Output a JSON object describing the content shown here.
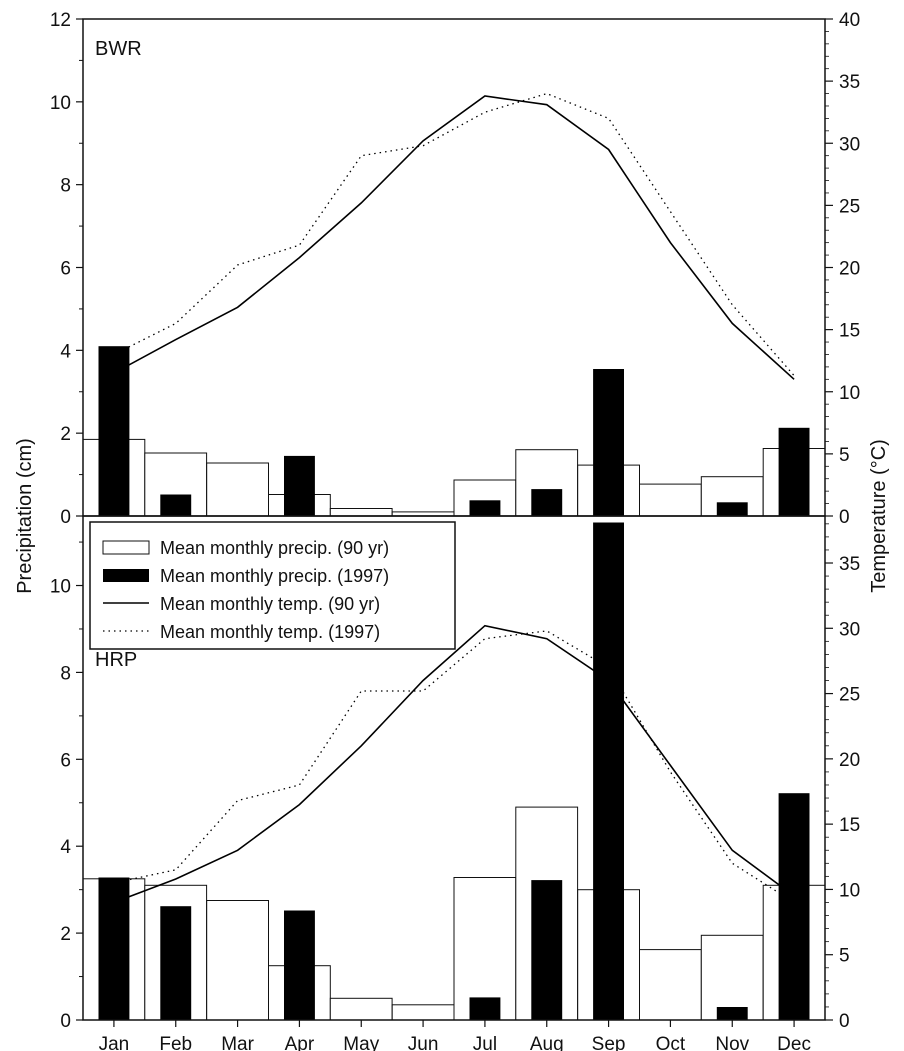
{
  "chart_data": {
    "type": "bar",
    "categories": [
      "Jan",
      "Feb",
      "Mar",
      "Apr",
      "May",
      "Jun",
      "Jul",
      "Aug",
      "Sep",
      "Oct",
      "Nov",
      "Dec"
    ],
    "ylabel": "Precipitation (cm)",
    "y2label": "Temperature (°C)",
    "legend": {
      "placement": "middle-left",
      "entries": [
        "Mean monthly precip. (90 yr)",
        "Mean monthly precip. (1997)",
        "Mean monthly temp. (90 yr)",
        "Mean monthly temp. (1997)"
      ]
    },
    "panels": [
      {
        "label": "BWR",
        "ylim": [
          0,
          12
        ],
        "y_ticks": [
          0,
          2,
          4,
          6,
          8,
          10,
          12
        ],
        "y2lim": [
          0,
          40
        ],
        "y2_ticks": [
          0,
          5,
          10,
          15,
          20,
          25,
          30,
          35,
          40
        ],
        "precip_90yr": [
          1.85,
          1.52,
          1.28,
          0.52,
          0.18,
          0.1,
          0.87,
          1.6,
          1.23,
          0.77,
          0.95,
          1.63
        ],
        "precip_1997": [
          4.1,
          0.52,
          0,
          1.45,
          0,
          0,
          0.38,
          0.65,
          3.55,
          0,
          0.33,
          2.13
        ],
        "temp_90yr": [
          11.5,
          14.2,
          16.8,
          20.8,
          25.2,
          30.2,
          33.8,
          33.1,
          29.5,
          22.0,
          15.5,
          11.0
        ],
        "temp_1997": [
          13.0,
          15.5,
          20.2,
          21.8,
          29.0,
          29.8,
          32.5,
          34.0,
          32.0,
          24.5,
          17.0,
          11.3
        ]
      },
      {
        "label": "HRP",
        "ylim": [
          0,
          11.6
        ],
        "y_ticks": [
          0,
          2,
          4,
          6,
          8,
          10
        ],
        "y2lim": [
          0,
          38.6
        ],
        "y2_ticks": [
          0,
          5,
          10,
          15,
          20,
          25,
          30,
          35
        ],
        "precip_90yr": [
          3.25,
          3.1,
          2.75,
          1.25,
          0.5,
          0.35,
          3.28,
          4.9,
          3.0,
          1.62,
          1.95,
          3.1
        ],
        "precip_1997": [
          3.28,
          2.62,
          0,
          2.52,
          0,
          0,
          0.52,
          3.22,
          11.45,
          0,
          0.3,
          5.22
        ],
        "temp_90yr": [
          9.0,
          10.8,
          13.0,
          16.5,
          21.0,
          26.0,
          30.2,
          29.2,
          26.0,
          19.5,
          13.0,
          9.5
        ],
        "temp_1997": [
          10.5,
          11.5,
          16.8,
          18.0,
          25.2,
          25.2,
          29.2,
          29.8,
          27.0,
          19.0,
          12.0,
          9.0
        ]
      }
    ]
  }
}
